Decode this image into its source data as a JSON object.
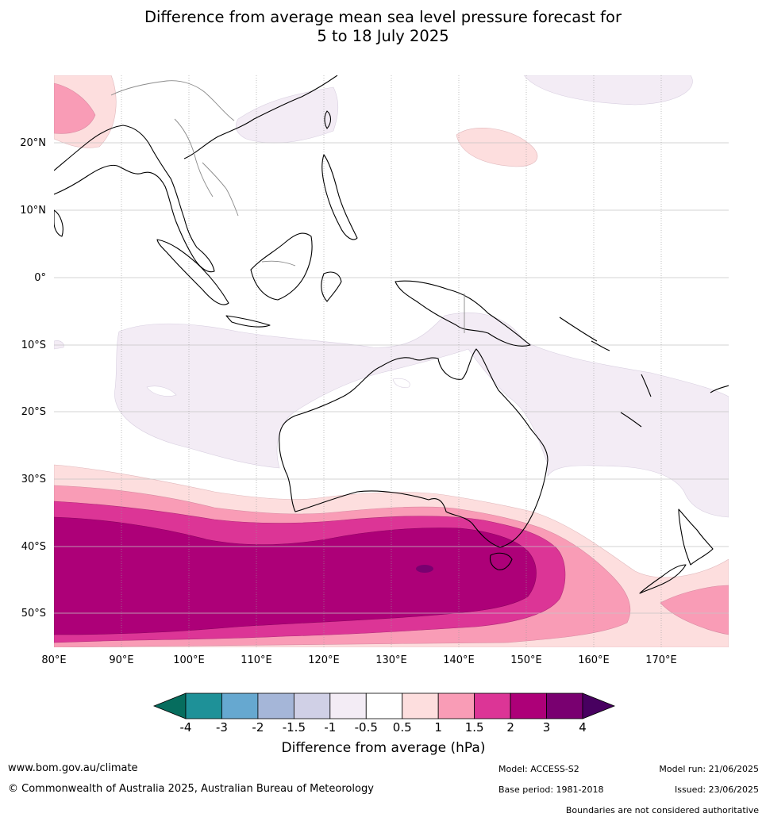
{
  "title_line1": "Difference from average mean sea level pressure forecast for",
  "title_line2": "5 to 18 July 2025",
  "lat_labels": [
    "20°N",
    "10°N",
    "0°",
    "10°S",
    "20°S",
    "30°S",
    "40°S",
    "50°S"
  ],
  "lon_labels": [
    "80°E",
    "90°E",
    "100°E",
    "110°E",
    "120°E",
    "130°E",
    "140°E",
    "150°E",
    "160°E",
    "170°E"
  ],
  "colorbar": {
    "title": "Difference from average (hPa)",
    "tick_labels": [
      "-4",
      "-3",
      "-2",
      "-1.5",
      "-1",
      "-0.5",
      "0.5",
      "1",
      "1.5",
      "2",
      "3",
      "4"
    ],
    "colors": [
      "#1e9198",
      "#66a8d0",
      "#a5b6d8",
      "#d0d0e6",
      "#f3ecf5",
      "#ffffff",
      "#fddede",
      "#f99cb6",
      "#dc3596",
      "#ad0078",
      "#790070"
    ],
    "extend_low_color": "#066d5e",
    "extend_high_color": "#480060"
  },
  "footer": {
    "website": "www.bom.gov.au/climate",
    "copyright": "© Commonwealth of Australia 2025, Australian Bureau of Meteorology",
    "model": "Model: ACCESS-S2",
    "base_period": "Base period: 1981-2018",
    "model_run": "Model run: 21/06/2025",
    "issued": "Issued: 23/06/2025",
    "disclaimer": "Boundaries are not considered authoritative"
  }
}
